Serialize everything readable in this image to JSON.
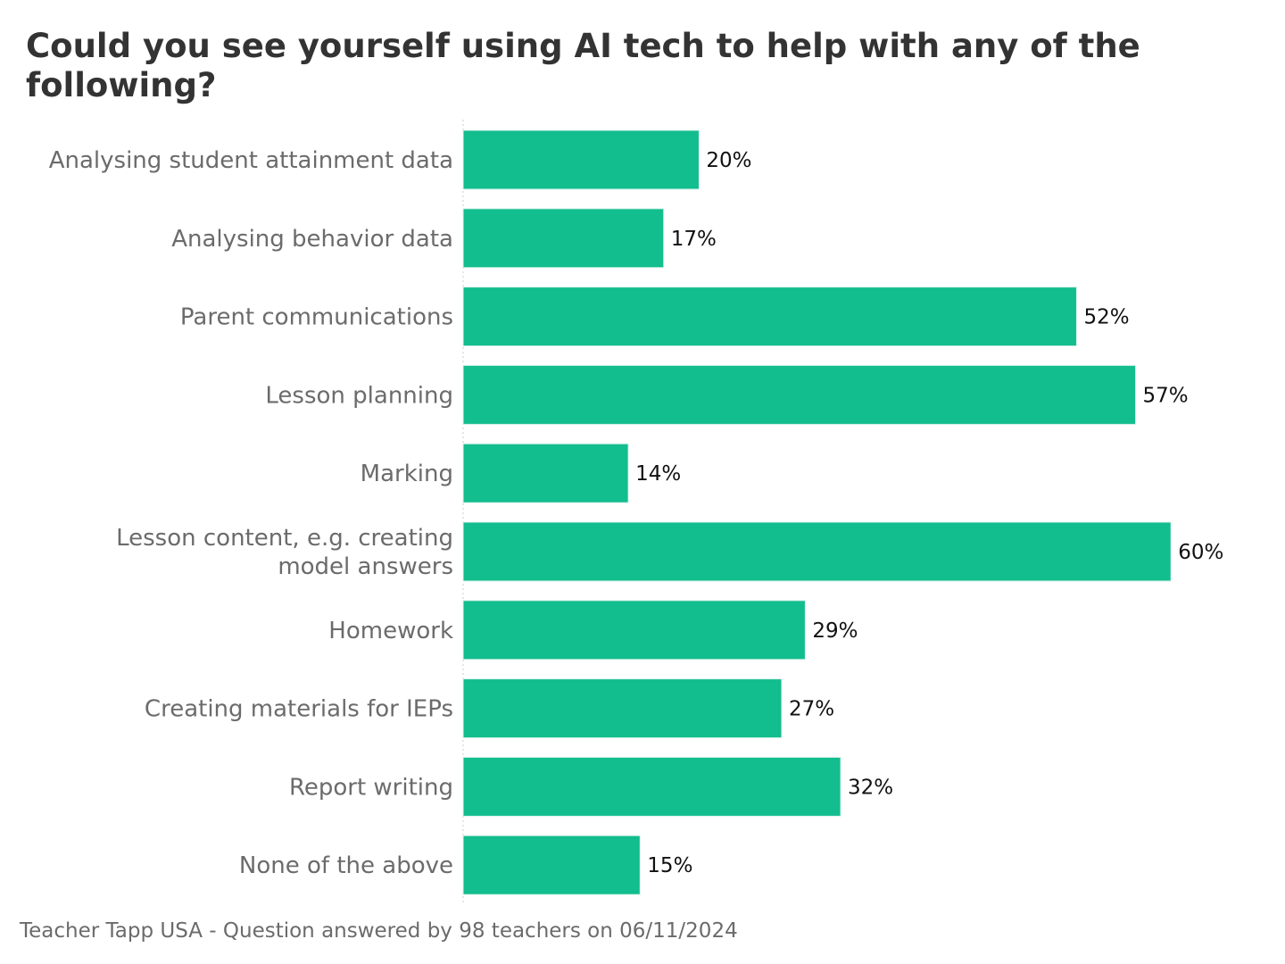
{
  "chart_data": {
    "type": "bar",
    "orientation": "horizontal",
    "title": "Could you see yourself using AI tech to help with any of the following?",
    "categories": [
      "Analysing student attainment data",
      "Analysing behavior data",
      "Parent communications",
      "Lesson planning",
      "Marking",
      "Lesson content, e.g. creating model answers",
      "Homework",
      "Creating materials for IEPs",
      "Report writing",
      "None of the above"
    ],
    "values": [
      20,
      17,
      52,
      57,
      14,
      60,
      29,
      27,
      32,
      15
    ],
    "value_labels": [
      "20%",
      "17%",
      "52%",
      "57%",
      "14%",
      "60%",
      "29%",
      "27%",
      "32%",
      "15%"
    ],
    "xlim": [
      0,
      60
    ],
    "grid": false,
    "legend": "none",
    "bar_color": "#12bd8e",
    "footer": "Teacher Tapp USA - Question answered by 98 teachers on 06/11/2024"
  }
}
